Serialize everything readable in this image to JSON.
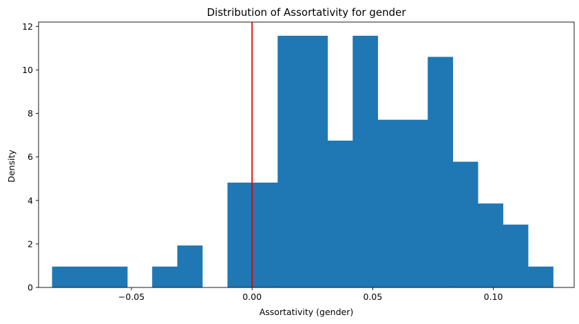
{
  "chart_data": {
    "type": "bar",
    "title": "Distribution of Assortativity for gender",
    "xlabel": "Assortativity (gender)",
    "ylabel": "Density",
    "xlim": [
      -0.0885,
      0.1335
    ],
    "ylim": [
      0,
      12.2
    ],
    "xticks": [
      -0.05,
      0.0,
      0.05,
      0.1
    ],
    "xtick_labels": [
      "−0.05",
      "0.00",
      "0.05",
      "0.10"
    ],
    "yticks": [
      0,
      2,
      4,
      6,
      8,
      10,
      12
    ],
    "ytick_labels": [
      "0",
      "2",
      "4",
      "6",
      "8",
      "10",
      "12"
    ],
    "bin_width": 0.01038,
    "bins": [
      {
        "x0": -0.0829,
        "value": 0.96
      },
      {
        "x0": -0.0725,
        "value": 0.96
      },
      {
        "x0": -0.0621,
        "value": 0.96
      },
      {
        "x0": -0.0517,
        "value": 0.0
      },
      {
        "x0": -0.0414,
        "value": 0.96
      },
      {
        "x0": -0.031,
        "value": 1.93
      },
      {
        "x0": -0.0206,
        "value": 0.0
      },
      {
        "x0": -0.0102,
        "value": 4.82
      },
      {
        "x0": 0.0002,
        "value": 4.82
      },
      {
        "x0": 0.0106,
        "value": 11.57
      },
      {
        "x0": 0.0209,
        "value": 11.57
      },
      {
        "x0": 0.0313,
        "value": 6.75
      },
      {
        "x0": 0.0417,
        "value": 11.57
      },
      {
        "x0": 0.0521,
        "value": 7.71
      },
      {
        "x0": 0.0625,
        "value": 7.71
      },
      {
        "x0": 0.0728,
        "value": 10.6
      },
      {
        "x0": 0.0832,
        "value": 5.78
      },
      {
        "x0": 0.0936,
        "value": 3.86
      },
      {
        "x0": 0.104,
        "value": 2.89
      },
      {
        "x0": 0.1144,
        "value": 0.96
      }
    ],
    "vline": {
      "x": 0.0,
      "color": "#e50000"
    },
    "bar_color": "#1f77b4",
    "grid": false
  }
}
